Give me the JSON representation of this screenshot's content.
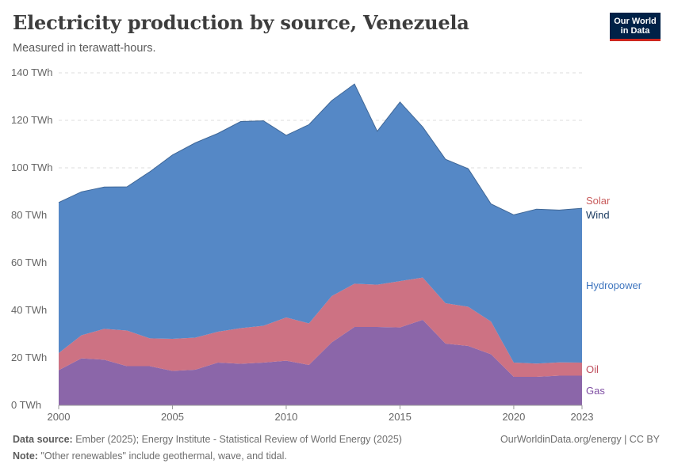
{
  "header": {
    "title": "Electricity production by source, Venezuela",
    "subtitle": "Measured in terawatt-hours.",
    "logo_line1": "Our World",
    "logo_line2": "in Data"
  },
  "footer": {
    "source_label": "Data source:",
    "source_text": "Ember (2025); Energy Institute - Statistical Review of World Energy (2025)",
    "note_label": "Note:",
    "note_text": "\"Other renewables\" include geothermal, wave, and tidal.",
    "credit": "OurWorldinData.org/energy | CC BY"
  },
  "colors": {
    "Gas": "#8b66a9",
    "Oil": "#cd7283",
    "Hydropower": "#5588c6",
    "Wind": "#1d3d63",
    "Solar": "#c95d5d"
  },
  "chart_data": {
    "type": "area",
    "stacked": true,
    "title": "Electricity production by source, Venezuela",
    "ylabel": "TWh",
    "ylim": [
      0,
      140
    ],
    "yticks": [
      0,
      20,
      40,
      60,
      80,
      100,
      120,
      140
    ],
    "ytick_labels": [
      "0 TWh",
      "20 TWh",
      "40 TWh",
      "60 TWh",
      "80 TWh",
      "100 TWh",
      "120 TWh",
      "140 TWh"
    ],
    "xticks": [
      2000,
      2005,
      2010,
      2015,
      2020,
      2023
    ],
    "x": [
      2000,
      2001,
      2002,
      2003,
      2004,
      2005,
      2006,
      2007,
      2008,
      2009,
      2010,
      2011,
      2012,
      2013,
      2014,
      2015,
      2016,
      2017,
      2018,
      2019,
      2020,
      2021,
      2022,
      2023
    ],
    "series": [
      {
        "name": "Gas",
        "values": [
          14.8,
          19.8,
          19.2,
          16.5,
          16.5,
          14.5,
          15.0,
          18.0,
          17.5,
          18.0,
          18.8,
          17.0,
          26.5,
          33.0,
          33.0,
          32.8,
          36.0,
          26.0,
          25.0,
          21.5,
          12.0,
          12.0,
          12.5,
          12.5
        ]
      },
      {
        "name": "Oil",
        "values": [
          7.2,
          9.7,
          13.0,
          15.0,
          11.7,
          13.5,
          13.5,
          13.0,
          15.0,
          15.5,
          18.2,
          17.5,
          19.5,
          18.2,
          17.8,
          19.5,
          17.8,
          17.0,
          16.5,
          13.8,
          6.0,
          5.6,
          5.6,
          5.5
        ]
      },
      {
        "name": "Hydropower",
        "values": [
          63.4,
          60.4,
          59.7,
          60.5,
          70.1,
          77.4,
          82.0,
          83.5,
          87.0,
          86.3,
          76.7,
          83.7,
          82.3,
          84.0,
          64.5,
          75.3,
          63.3,
          60.5,
          58.0,
          49.4,
          62.1,
          64.9,
          64.0,
          64.8
        ]
      },
      {
        "name": "Wind",
        "values": [
          0,
          0,
          0,
          0,
          0,
          0,
          0,
          0,
          0,
          0,
          0,
          0,
          0,
          0.1,
          0.1,
          0.1,
          0.1,
          0.1,
          0.1,
          0.1,
          0.1,
          0.1,
          0.1,
          0.1
        ]
      },
      {
        "name": "Solar",
        "values": [
          0,
          0,
          0,
          0,
          0,
          0,
          0,
          0,
          0,
          0,
          0,
          0,
          0,
          0,
          0,
          0,
          0,
          0,
          0,
          0,
          0,
          0,
          0,
          0.05
        ]
      }
    ],
    "legend": [
      "Solar",
      "Wind",
      "Hydropower",
      "Oil",
      "Gas"
    ]
  }
}
